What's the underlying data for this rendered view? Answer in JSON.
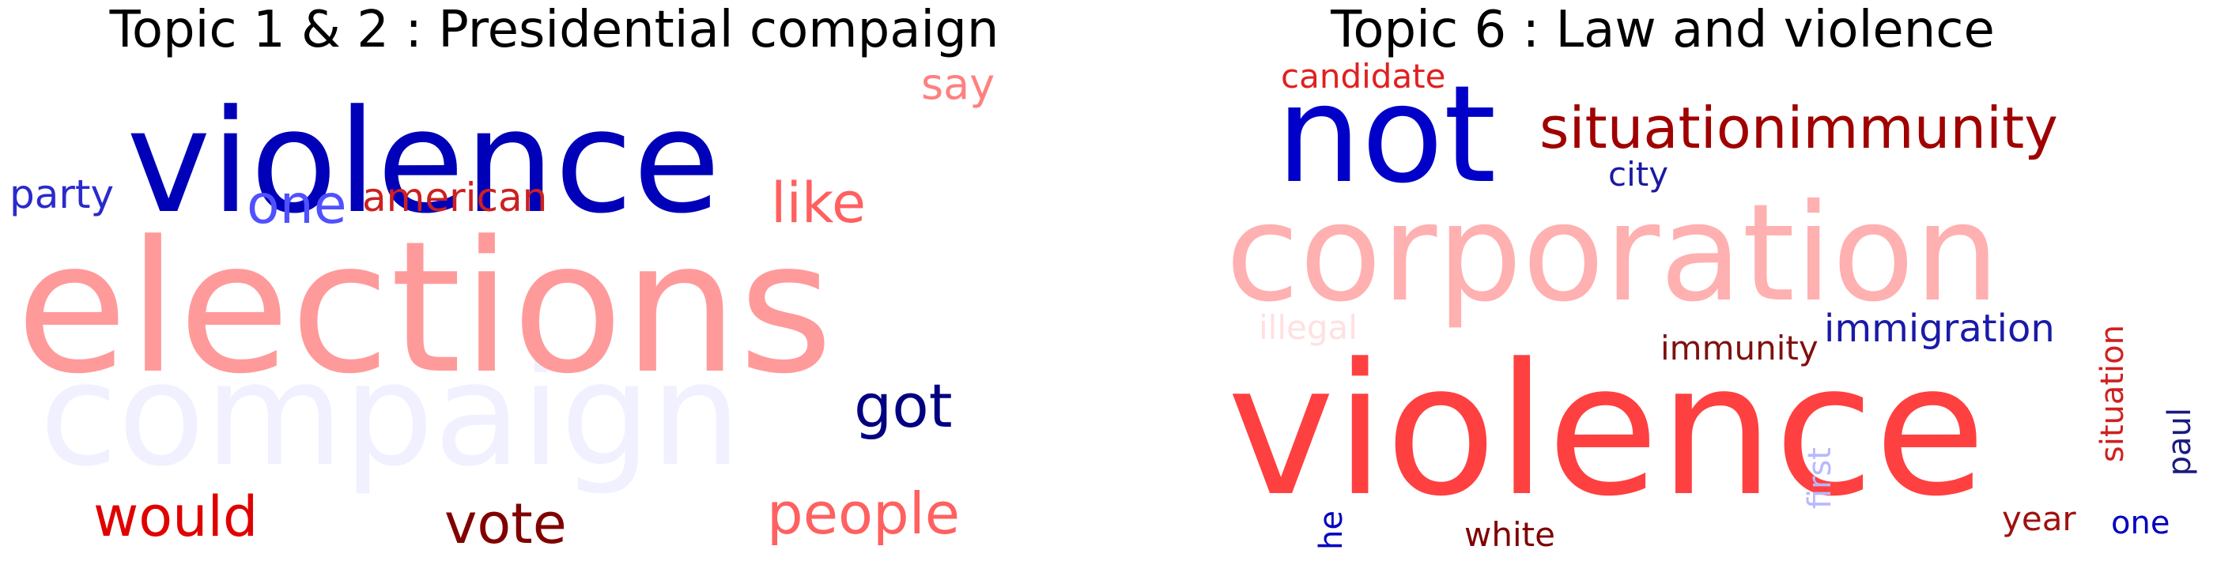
{
  "figures": [
    {
      "title": "Topic 1 & 2 : Presidential compaign",
      "words": [
        {
          "text": "violence",
          "color": "#0000b8"
        },
        {
          "text": "elections",
          "color": "#ff9a9a"
        },
        {
          "text": "compaign",
          "color": "#f0f0ff"
        },
        {
          "text": "say",
          "color": "#ff8080"
        },
        {
          "text": "party",
          "color": "#2a2acc"
        },
        {
          "text": "one",
          "color": "#5050ff"
        },
        {
          "text": "american",
          "color": "#cc2020"
        },
        {
          "text": "like",
          "color": "#ff6060"
        },
        {
          "text": "got",
          "color": "#000080"
        },
        {
          "text": "would",
          "color": "#e00000"
        },
        {
          "text": "vote",
          "color": "#800000"
        },
        {
          "text": "people",
          "color": "#ff6060"
        }
      ]
    },
    {
      "title": "Topic 6 : Law and violence",
      "words": [
        {
          "text": "candidate",
          "color": "#e02020"
        },
        {
          "text": "not",
          "color": "#0000c8"
        },
        {
          "text": "situationimmunity",
          "color": "#a00000"
        },
        {
          "text": "city",
          "color": "#1a1aa0"
        },
        {
          "text": "corporation",
          "color": "#ffb0b0"
        },
        {
          "text": "illegal",
          "color": "#ffe0e0"
        },
        {
          "text": "immunity",
          "color": "#801010"
        },
        {
          "text": "immigration",
          "color": "#1a1aa8"
        },
        {
          "text": "situation",
          "color": "#d02020"
        },
        {
          "text": "paul",
          "color": "#1a1a80"
        },
        {
          "text": "violence",
          "color": "#ff4040"
        },
        {
          "text": "he",
          "color": "#0000c0"
        },
        {
          "text": "white",
          "color": "#800000"
        },
        {
          "text": "first",
          "color": "#b8b8ff"
        },
        {
          "text": "year",
          "color": "#a01010"
        },
        {
          "text": "one",
          "color": "#0000c0"
        }
      ]
    }
  ]
}
